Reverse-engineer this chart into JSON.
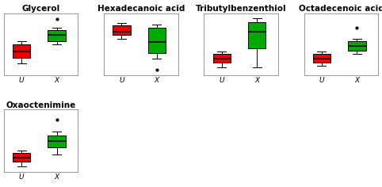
{
  "plots": [
    {
      "title": "Glycerol",
      "red_box": {
        "q1": 0.3,
        "median": 0.4,
        "q3": 0.52,
        "whislo": 0.2,
        "whishi": 0.58,
        "fliers": []
      },
      "green_box": {
        "q1": 0.58,
        "median": 0.68,
        "q3": 0.76,
        "whislo": 0.52,
        "whishi": 0.8,
        "fliers": [
          0.95
        ]
      },
      "row": 0,
      "col": 0
    },
    {
      "title": "Hexadecanoic acid",
      "red_box": {
        "q1": 0.68,
        "median": 0.74,
        "q3": 0.84,
        "whislo": 0.62,
        "whishi": 0.88,
        "fliers": []
      },
      "green_box": {
        "q1": 0.38,
        "median": 0.56,
        "q3": 0.8,
        "whislo": 0.28,
        "whishi": 0.86,
        "fliers": [
          0.1
        ]
      },
      "row": 0,
      "col": 1
    },
    {
      "title": "Tributylbenzenthiol",
      "red_box": {
        "q1": 0.22,
        "median": 0.28,
        "q3": 0.36,
        "whislo": 0.14,
        "whishi": 0.4,
        "fliers": []
      },
      "green_box": {
        "q1": 0.46,
        "median": 0.74,
        "q3": 0.9,
        "whislo": 0.14,
        "whishi": 0.96,
        "fliers": []
      },
      "row": 0,
      "col": 2
    },
    {
      "title": "Octadecenoic acid",
      "red_box": {
        "q1": 0.22,
        "median": 0.28,
        "q3": 0.36,
        "whislo": 0.16,
        "whishi": 0.4,
        "fliers": []
      },
      "green_box": {
        "q1": 0.42,
        "median": 0.5,
        "q3": 0.58,
        "whislo": 0.36,
        "whishi": 0.62,
        "fliers": [
          0.8
        ]
      },
      "row": 0,
      "col": 3
    },
    {
      "title": "Oxaoctenimine",
      "red_box": {
        "q1": 0.18,
        "median": 0.24,
        "q3": 0.32,
        "whislo": 0.1,
        "whishi": 0.36,
        "fliers": []
      },
      "green_box": {
        "q1": 0.42,
        "median": 0.52,
        "q3": 0.62,
        "whislo": 0.3,
        "whishi": 0.68,
        "fliers": [
          0.88
        ]
      },
      "row": 1,
      "col": 0
    }
  ],
  "red_color": "#EE0000",
  "green_color": "#00AA00",
  "xlabel_u": "U",
  "xlabel_x": "X",
  "background": "#FFFFFF",
  "ncols": 4,
  "nrows": 2,
  "title_fontsize": 7.5,
  "tick_fontsize": 6.5
}
